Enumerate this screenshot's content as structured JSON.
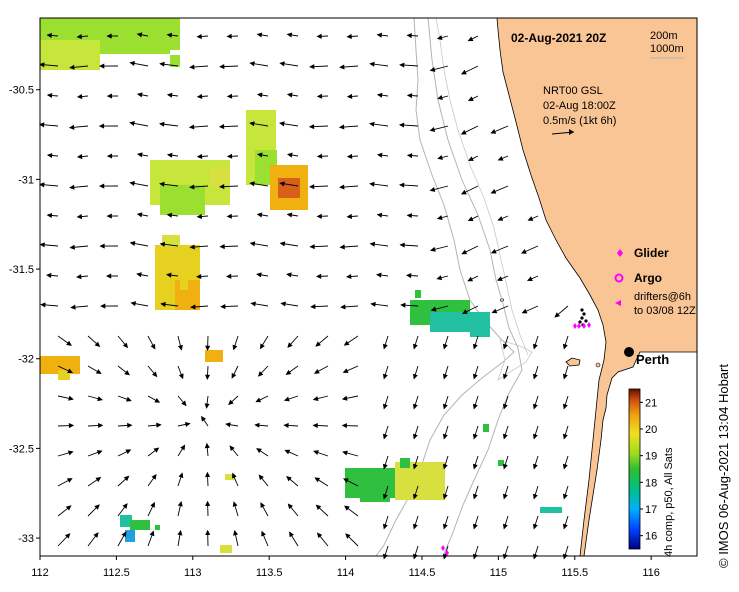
{
  "map": {
    "date_title": "02-Aug-2021 20Z",
    "isobath_labels": [
      "200m",
      "1000m"
    ],
    "currents": {
      "source": "NRT00 GSL",
      "time": "02-Aug 18:00Z",
      "scale_note": "0.5m/s (1kt 6h)"
    },
    "legend": {
      "glider": "Glider",
      "argo": "Argo",
      "drifters_line1": "drifters@6h",
      "drifters_line2": "to 03/08 12Z"
    },
    "city": "Perth",
    "credit": "© IMOS 06-Aug-2021 13:04 Hobart",
    "colorbar": {
      "label": "4h comp, p50, All Sats",
      "min": 15.5,
      "max": 21.5,
      "ticks": [
        "16",
        "17",
        "18",
        "19",
        "20",
        "21"
      ]
    },
    "x_ticks": [
      "112",
      "112.5",
      "113",
      "113.5",
      "114",
      "114.5",
      "115",
      "115.5",
      "116"
    ],
    "y_ticks": [
      "-30.5",
      "-31",
      "-31.5",
      "-32",
      "-32.5",
      "-33"
    ],
    "colors": {
      "land": "#f9c595",
      "ocean": "#ffffff",
      "isobath": "#b0b0b0",
      "glider": "#ff00ff",
      "argo": "#ff00ff"
    },
    "extent": {
      "lon": [
        112,
        116.3
      ],
      "lat": [
        -33.1,
        -30.1
      ]
    }
  }
}
